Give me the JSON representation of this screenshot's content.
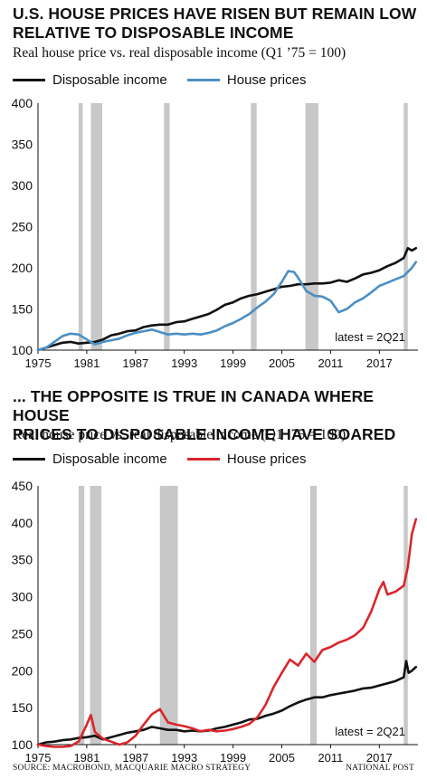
{
  "panels": [
    {
      "headline_line1": "U.S. HOUSE PRICES HAVE RISEN BUT REMAIN LOW",
      "headline_line2": "RELATIVE TO DISPOSABLE INCOME",
      "subtitle": "Real house price vs. real disposable income (Q1 ’75 = 100)",
      "legend": [
        {
          "label": "Disposable income",
          "color": "#111111"
        },
        {
          "label": "House prices",
          "color": "#4a8fc4"
        }
      ],
      "note": "latest = 2Q21"
    },
    {
      "headline_line1": "... THE OPPOSITE IS TRUE IN CANADA WHERE HOUSE",
      "headline_line2": "PRICES TO DISPOSABLE INCOME HAVE SOARED",
      "subtitle": "Real house price vs. real disposable income (Q1 ’75 = 100)",
      "legend": [
        {
          "label": "Disposable income",
          "color": "#111111"
        },
        {
          "label": "House prices",
          "color": "#d9262b"
        }
      ],
      "note": "latest = 2Q21"
    }
  ],
  "footer": {
    "source": "SOURCE: MACROBOND, MACQUARIE MACRO STRATEGY",
    "credit": "NATIONAL POST"
  },
  "chart_data": [
    {
      "type": "line",
      "title": "U.S. HOUSE PRICES HAVE RISEN BUT REMAIN LOW RELATIVE TO DISPOSABLE INCOME",
      "subtitle": "Real house price vs. real disposable income (Q1 ’75 = 100)",
      "x_ticks": [
        "1975",
        "1981",
        "1987",
        "1993",
        "1999",
        "2005",
        "2011",
        "2017"
      ],
      "xlim": [
        1975,
        2021.75
      ],
      "ylim": [
        100,
        400
      ],
      "y_ticks": [
        100,
        150,
        200,
        250,
        300,
        350,
        400
      ],
      "recessions": [
        [
          1980.0,
          1980.5
        ],
        [
          1981.5,
          1982.9
        ],
        [
          1990.5,
          1991.2
        ],
        [
          2001.2,
          2001.9
        ],
        [
          2007.9,
          2009.5
        ],
        [
          2020.0,
          2020.5
        ]
      ],
      "series": [
        {
          "name": "Disposable income",
          "color": "#111111",
          "x": [
            1975,
            1976,
            1977,
            1978,
            1979,
            1980,
            1981,
            1982,
            1983,
            1984,
            1985,
            1986,
            1987,
            1988,
            1989,
            1990,
            1991,
            1992,
            1993,
            1994,
            1995,
            1996,
            1997,
            1998,
            1999,
            2000,
            2001,
            2002,
            2003,
            2004,
            2005,
            2006,
            2007,
            2008,
            2009,
            2010,
            2011,
            2012,
            2013,
            2014,
            2015,
            2016,
            2017,
            2018,
            2019,
            2020,
            2020.5,
            2021,
            2021.5
          ],
          "y": [
            100,
            103,
            106,
            109,
            110,
            108,
            109,
            110,
            113,
            118,
            120,
            123,
            124,
            128,
            130,
            131,
            131,
            134,
            135,
            138,
            141,
            144,
            149,
            155,
            158,
            163,
            166,
            168,
            171,
            174,
            177,
            178,
            180,
            180,
            181,
            181,
            182,
            185,
            183,
            187,
            192,
            194,
            197,
            202,
            206,
            212,
            224,
            221,
            224
          ]
        },
        {
          "name": "House prices",
          "color": "#4a8fc4",
          "x": [
            1975,
            1976,
            1977,
            1978,
            1979,
            1980,
            1981,
            1982,
            1983,
            1984,
            1985,
            1986,
            1987,
            1988,
            1989,
            1990,
            1991,
            1992,
            1993,
            1994,
            1995,
            1996,
            1997,
            1998,
            1999,
            2000,
            2001,
            2002,
            2003,
            2004,
            2005,
            2005.8,
            2006.5,
            2007,
            2008,
            2009,
            2010,
            2011,
            2012,
            2013,
            2014,
            2015,
            2016,
            2017,
            2018,
            2019,
            2020,
            2020.5,
            2021,
            2021.5
          ],
          "y": [
            100,
            103,
            110,
            117,
            120,
            119,
            113,
            107,
            110,
            112,
            114,
            118,
            121,
            123,
            125,
            122,
            119,
            120,
            119,
            120,
            119,
            121,
            124,
            129,
            133,
            138,
            144,
            152,
            159,
            168,
            183,
            196,
            195,
            188,
            172,
            166,
            165,
            160,
            146,
            150,
            158,
            163,
            170,
            178,
            182,
            186,
            190,
            195,
            200,
            207
          ]
        }
      ],
      "annotation": "latest = 2Q21"
    },
    {
      "type": "line",
      "title": "... THE OPPOSITE IS TRUE IN CANADA WHERE HOUSE PRICES TO DISPOSABLE INCOME HAVE SOARED",
      "subtitle": "Real house price vs. real disposable income (Q1 ’75 = 100)",
      "x_ticks": [
        "1975",
        "1981",
        "1987",
        "1993",
        "1999",
        "2005",
        "2011",
        "2017"
      ],
      "xlim": [
        1975,
        2021.75
      ],
      "ylim": [
        100,
        450
      ],
      "y_ticks": [
        100,
        150,
        200,
        250,
        300,
        350,
        400,
        450
      ],
      "recessions": [
        [
          1980.0,
          1980.7
        ],
        [
          1981.4,
          1982.8
        ],
        [
          1990.0,
          1992.2
        ],
        [
          2008.5,
          2009.3
        ],
        [
          2020.0,
          2020.5
        ]
      ],
      "series": [
        {
          "name": "Disposable income",
          "color": "#111111",
          "x": [
            1975,
            1976,
            1977,
            1978,
            1979,
            1980,
            1981,
            1982,
            1983,
            1984,
            1985,
            1986,
            1987,
            1988,
            1989,
            1990,
            1991,
            1992,
            1993,
            1994,
            1995,
            1996,
            1997,
            1998,
            1999,
            2000,
            2001,
            2002,
            2003,
            2004,
            2005,
            2006,
            2007,
            2008,
            2009,
            2010,
            2011,
            2012,
            2013,
            2014,
            2015,
            2016,
            2017,
            2018,
            2019,
            2020,
            2020.3,
            2020.6,
            2021,
            2021.5
          ],
          "y": [
            100,
            103,
            104,
            106,
            107,
            109,
            110,
            112,
            107,
            110,
            113,
            116,
            118,
            120,
            124,
            122,
            120,
            120,
            118,
            119,
            118,
            119,
            122,
            124,
            127,
            130,
            134,
            135,
            139,
            142,
            146,
            152,
            157,
            161,
            164,
            164,
            167,
            169,
            171,
            173,
            176,
            177,
            180,
            183,
            186,
            191,
            213,
            197,
            200,
            205
          ]
        },
        {
          "name": "House prices",
          "color": "#d9262b",
          "x": [
            1975,
            1976,
            1977,
            1978,
            1979,
            1980,
            1981,
            1981.5,
            1982,
            1983,
            1984,
            1985,
            1986,
            1987,
            1988,
            1989,
            1990,
            1991,
            1992,
            1993,
            1994,
            1995,
            1996,
            1997,
            1998,
            1999,
            2000,
            2001,
            2002,
            2003,
            2004,
            2005,
            2006,
            2007,
            2008,
            2009,
            2010,
            2011,
            2012,
            2013,
            2014,
            2015,
            2016,
            2017,
            2017.5,
            2018,
            2019,
            2020,
            2020.5,
            2021,
            2021.5
          ],
          "y": [
            100,
            98,
            97,
            97,
            98,
            104,
            127,
            140,
            117,
            108,
            104,
            100,
            103,
            112,
            127,
            141,
            148,
            130,
            127,
            125,
            122,
            118,
            120,
            118,
            119,
            121,
            124,
            128,
            137,
            154,
            178,
            197,
            215,
            207,
            223,
            212,
            228,
            232,
            238,
            242,
            248,
            258,
            280,
            310,
            320,
            303,
            307,
            315,
            340,
            385,
            405
          ]
        }
      ],
      "annotation": "latest = 2Q21"
    }
  ]
}
